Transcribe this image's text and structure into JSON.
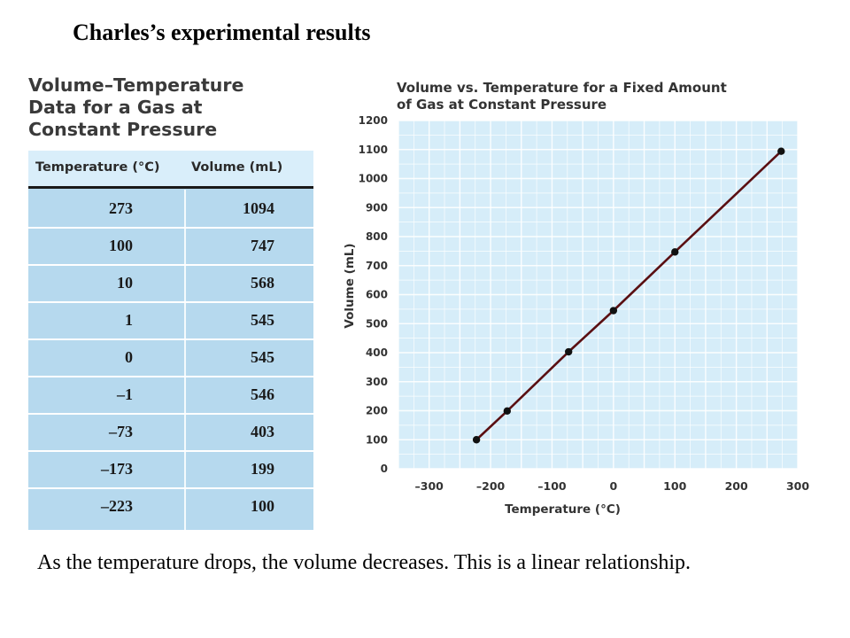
{
  "slide_title": "Charles’s experimental results",
  "table": {
    "title_lines": [
      "Volume–Temperature",
      "Data for a Gas at",
      "Constant Pressure"
    ],
    "headers": [
      "Temperature (°C)",
      "Volume (mL)"
    ],
    "rows": [
      {
        "temp": "273",
        "volume": "1094"
      },
      {
        "temp": "100",
        "volume": "747"
      },
      {
        "temp": "10",
        "volume": "568"
      },
      {
        "temp": "1",
        "volume": "545"
      },
      {
        "temp": "0",
        "volume": "545"
      },
      {
        "temp": "–1",
        "volume": "546"
      },
      {
        "temp": "–73",
        "volume": "403"
      },
      {
        "temp": "–173",
        "volume": "199"
      },
      {
        "temp": "–223",
        "volume": "100"
      }
    ]
  },
  "chart_data": {
    "type": "line",
    "title": "Volume vs. Temperature for a Fixed Amount of Gas at Constant Pressure",
    "title_lines": [
      "Volume vs. Temperature for a Fixed Amount",
      "of Gas at Constant Pressure"
    ],
    "xlabel": "Temperature (°C)",
    "ylabel": "Volume (mL)",
    "xlim": [
      -350,
      300
    ],
    "ylim": [
      0,
      1200
    ],
    "xticks": [
      -300,
      -200,
      -100,
      0,
      100,
      200,
      300
    ],
    "xtick_labels": [
      "–300",
      "–200",
      "–100",
      "0",
      "100",
      "200",
      "300"
    ],
    "yticks": [
      0,
      100,
      200,
      300,
      400,
      500,
      600,
      700,
      800,
      900,
      1000,
      1100,
      1200
    ],
    "ytick_labels": [
      "0",
      "100",
      "200",
      "300",
      "400",
      "500",
      "600",
      "700",
      "800",
      "900",
      "1000",
      "1100",
      "1200"
    ],
    "grid": true,
    "series": [
      {
        "x": [
          -223,
          -173,
          -73,
          0,
          100,
          273
        ],
        "y": [
          100,
          199,
          403,
          545,
          747,
          1094
        ]
      }
    ],
    "colors": {
      "plot_bg": "#d6edf9",
      "grid": "#ffffff",
      "line": "#5a0f12",
      "marker": "#111111"
    }
  },
  "caption": "As the temperature drops, the volume decreases. This is a linear relationship."
}
